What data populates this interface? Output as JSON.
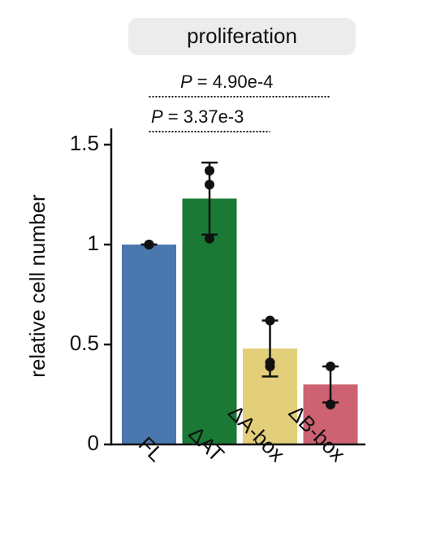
{
  "chart_data": {
    "type": "bar",
    "title": "proliferation",
    "categories": [
      "FL",
      "ΔAT",
      "ΔA-box",
      "ΔB-box"
    ],
    "values": [
      1.0,
      1.23,
      0.48,
      0.3
    ],
    "errors": [
      0,
      0.18,
      0.14,
      0.09
    ],
    "points": [
      [
        1.0,
        1.0,
        1.0
      ],
      [
        1.37,
        1.3,
        1.03
      ],
      [
        0.62,
        0.41,
        0.39
      ],
      [
        0.39,
        0.2,
        0.2
      ]
    ],
    "colors": [
      "#4a78ae",
      "#1a7a35",
      "#e3cf7a",
      "#cc6272"
    ],
    "ylabel": "relative cell number",
    "ylim": [
      0,
      1.5
    ],
    "yticks": [
      0,
      0.5,
      1,
      1.5
    ],
    "annotations": [
      "P = 4.90e-4",
      "P = 3.37e-3"
    ]
  }
}
